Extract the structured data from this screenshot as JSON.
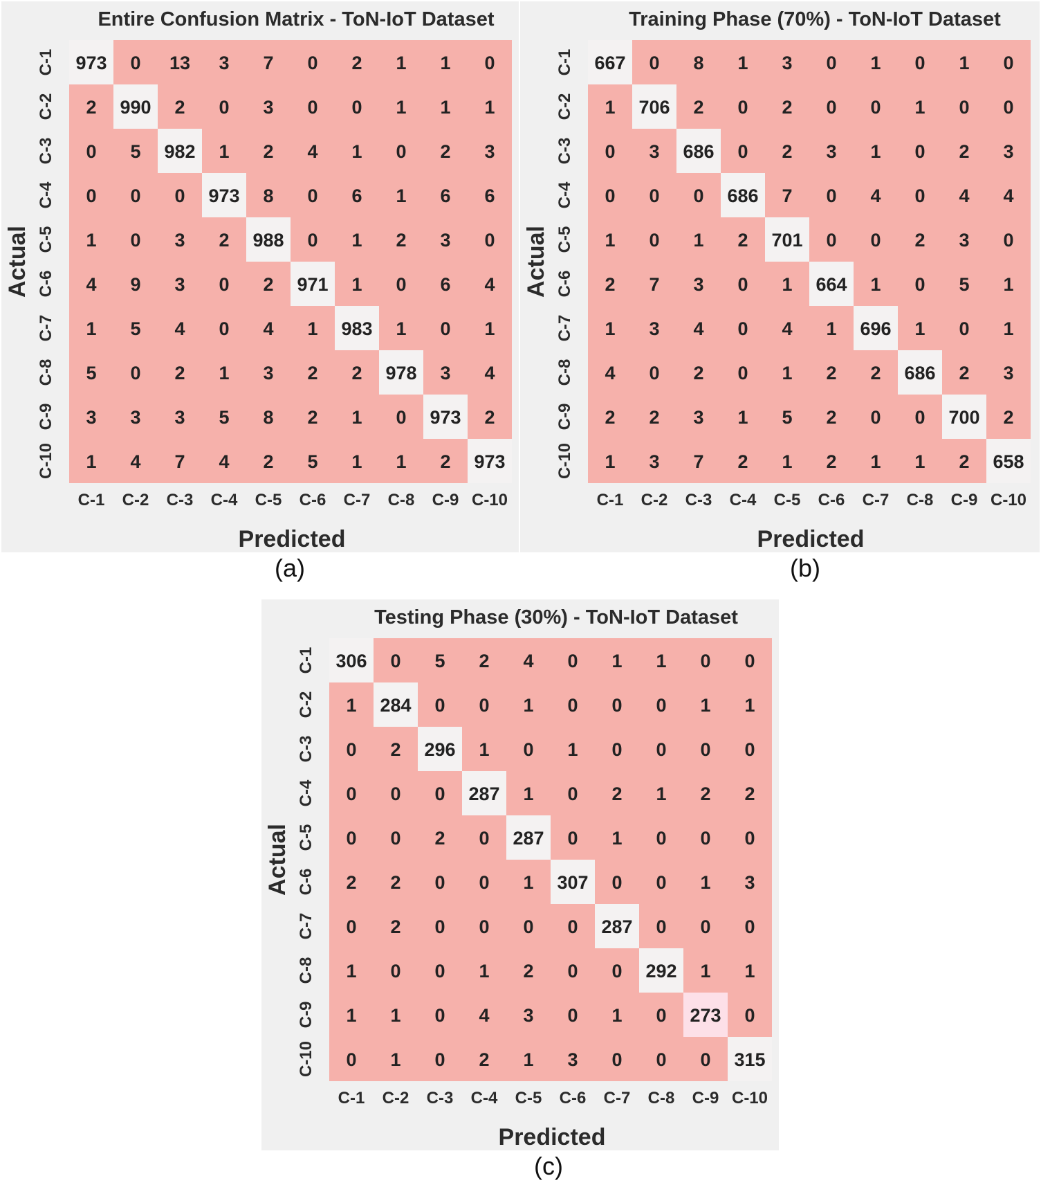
{
  "colors": {
    "offdiag": "#f6b1ab",
    "diag": "#f4f2f2",
    "diag_light_pink": "#fde0e8",
    "panel_bg": "#f0f0f0"
  },
  "chart_data": [
    {
      "type": "heatmap",
      "title": "Entire Confusion Matrix - ToN-IoT Dataset",
      "xlabel": "Predicted",
      "ylabel": "Actual",
      "caption": "(a)",
      "x_labels": [
        "C-1",
        "C-2",
        "C-3",
        "C-4",
        "C-5",
        "C-6",
        "C-7",
        "C-8",
        "C-9",
        "C-10"
      ],
      "y_labels": [
        "C-1",
        "C-2",
        "C-3",
        "C-4",
        "C-5",
        "C-6",
        "C-7",
        "C-8",
        "C-9",
        "C-10"
      ],
      "values": [
        [
          973,
          0,
          13,
          3,
          7,
          0,
          2,
          1,
          1,
          0
        ],
        [
          2,
          990,
          2,
          0,
          3,
          0,
          0,
          1,
          1,
          1
        ],
        [
          0,
          5,
          982,
          1,
          2,
          4,
          1,
          0,
          2,
          3
        ],
        [
          0,
          0,
          0,
          973,
          8,
          0,
          6,
          1,
          6,
          6
        ],
        [
          1,
          0,
          3,
          2,
          988,
          0,
          1,
          2,
          3,
          0
        ],
        [
          4,
          9,
          3,
          0,
          2,
          971,
          1,
          0,
          6,
          4
        ],
        [
          1,
          5,
          4,
          0,
          4,
          1,
          983,
          1,
          0,
          1
        ],
        [
          5,
          0,
          2,
          1,
          3,
          2,
          2,
          978,
          3,
          4
        ],
        [
          3,
          3,
          3,
          5,
          8,
          2,
          1,
          0,
          973,
          2
        ],
        [
          1,
          4,
          7,
          4,
          2,
          5,
          1,
          1,
          2,
          973
        ]
      ]
    },
    {
      "type": "heatmap",
      "title": "Training Phase (70%) - ToN-IoT Dataset",
      "xlabel": "Predicted",
      "ylabel": "Actual",
      "caption": "(b)",
      "x_labels": [
        "C-1",
        "C-2",
        "C-3",
        "C-4",
        "C-5",
        "C-6",
        "C-7",
        "C-8",
        "C-9",
        "C-10"
      ],
      "y_labels": [
        "C-1",
        "C-2",
        "C-3",
        "C-4",
        "C-5",
        "C-6",
        "C-7",
        "C-8",
        "C-9",
        "C-10"
      ],
      "values": [
        [
          667,
          0,
          8,
          1,
          3,
          0,
          1,
          0,
          1,
          0
        ],
        [
          1,
          706,
          2,
          0,
          2,
          0,
          0,
          1,
          0,
          0
        ],
        [
          0,
          3,
          686,
          0,
          2,
          3,
          1,
          0,
          2,
          3
        ],
        [
          0,
          0,
          0,
          686,
          7,
          0,
          4,
          0,
          4,
          4
        ],
        [
          1,
          0,
          1,
          2,
          701,
          0,
          0,
          2,
          3,
          0
        ],
        [
          2,
          7,
          3,
          0,
          1,
          664,
          1,
          0,
          5,
          1
        ],
        [
          1,
          3,
          4,
          0,
          4,
          1,
          696,
          1,
          0,
          1
        ],
        [
          4,
          0,
          2,
          0,
          1,
          2,
          2,
          686,
          2,
          3
        ],
        [
          2,
          2,
          3,
          1,
          5,
          2,
          0,
          0,
          700,
          2
        ],
        [
          1,
          3,
          7,
          2,
          1,
          2,
          1,
          1,
          2,
          658
        ]
      ]
    },
    {
      "type": "heatmap",
      "title": "Testing Phase (30%) - ToN-IoT Dataset",
      "xlabel": "Predicted",
      "ylabel": "Actual",
      "caption": "(c)",
      "x_labels": [
        "C-1",
        "C-2",
        "C-3",
        "C-4",
        "C-5",
        "C-6",
        "C-7",
        "C-8",
        "C-9",
        "C-10"
      ],
      "y_labels": [
        "C-1",
        "C-2",
        "C-3",
        "C-4",
        "C-5",
        "C-6",
        "C-7",
        "C-8",
        "C-9",
        "C-10"
      ],
      "values": [
        [
          306,
          0,
          5,
          2,
          4,
          0,
          1,
          1,
          0,
          0
        ],
        [
          1,
          284,
          0,
          0,
          1,
          0,
          0,
          0,
          1,
          1
        ],
        [
          0,
          2,
          296,
          1,
          0,
          1,
          0,
          0,
          0,
          0
        ],
        [
          0,
          0,
          0,
          287,
          1,
          0,
          2,
          1,
          2,
          2
        ],
        [
          0,
          0,
          2,
          0,
          287,
          0,
          1,
          0,
          0,
          0
        ],
        [
          2,
          2,
          0,
          0,
          1,
          307,
          0,
          0,
          1,
          3
        ],
        [
          0,
          2,
          0,
          0,
          0,
          0,
          287,
          0,
          0,
          0
        ],
        [
          1,
          0,
          0,
          1,
          2,
          0,
          0,
          292,
          1,
          1
        ],
        [
          1,
          1,
          0,
          4,
          3,
          0,
          1,
          0,
          273,
          0
        ],
        [
          0,
          1,
          0,
          2,
          1,
          3,
          0,
          0,
          0,
          315
        ]
      ]
    }
  ]
}
